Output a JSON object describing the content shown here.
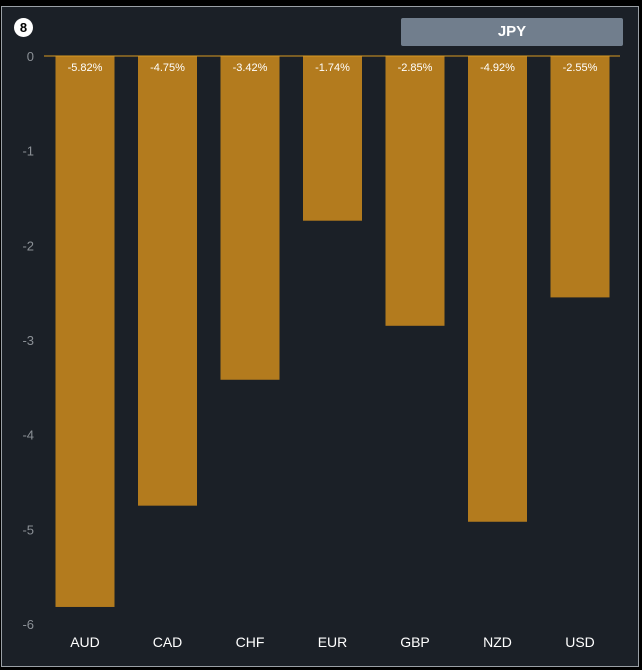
{
  "header": {
    "badge_number": "8",
    "currency_label": "JPY"
  },
  "colors": {
    "bar": "#b37b1e",
    "background": "#1b2027",
    "zero_line": "#d99a22",
    "button": "#717e8d"
  },
  "chart_data": {
    "type": "bar",
    "title": "",
    "xlabel": "",
    "ylabel": "",
    "categories": [
      "AUD",
      "CAD",
      "CHF",
      "EUR",
      "GBP",
      "NZD",
      "USD"
    ],
    "values": [
      -5.82,
      -4.75,
      -3.42,
      -1.74,
      -2.85,
      -4.92,
      -2.55
    ],
    "data_labels": [
      "-5.82%",
      "-4.75%",
      "-3.42%",
      "-1.74%",
      "-2.85%",
      "-4.92%",
      "-2.55%"
    ],
    "y_ticks": [
      0,
      -1,
      -2,
      -3,
      -4,
      -5,
      -6
    ],
    "ylim": [
      -6,
      0
    ],
    "grid": false,
    "legend": "none"
  }
}
